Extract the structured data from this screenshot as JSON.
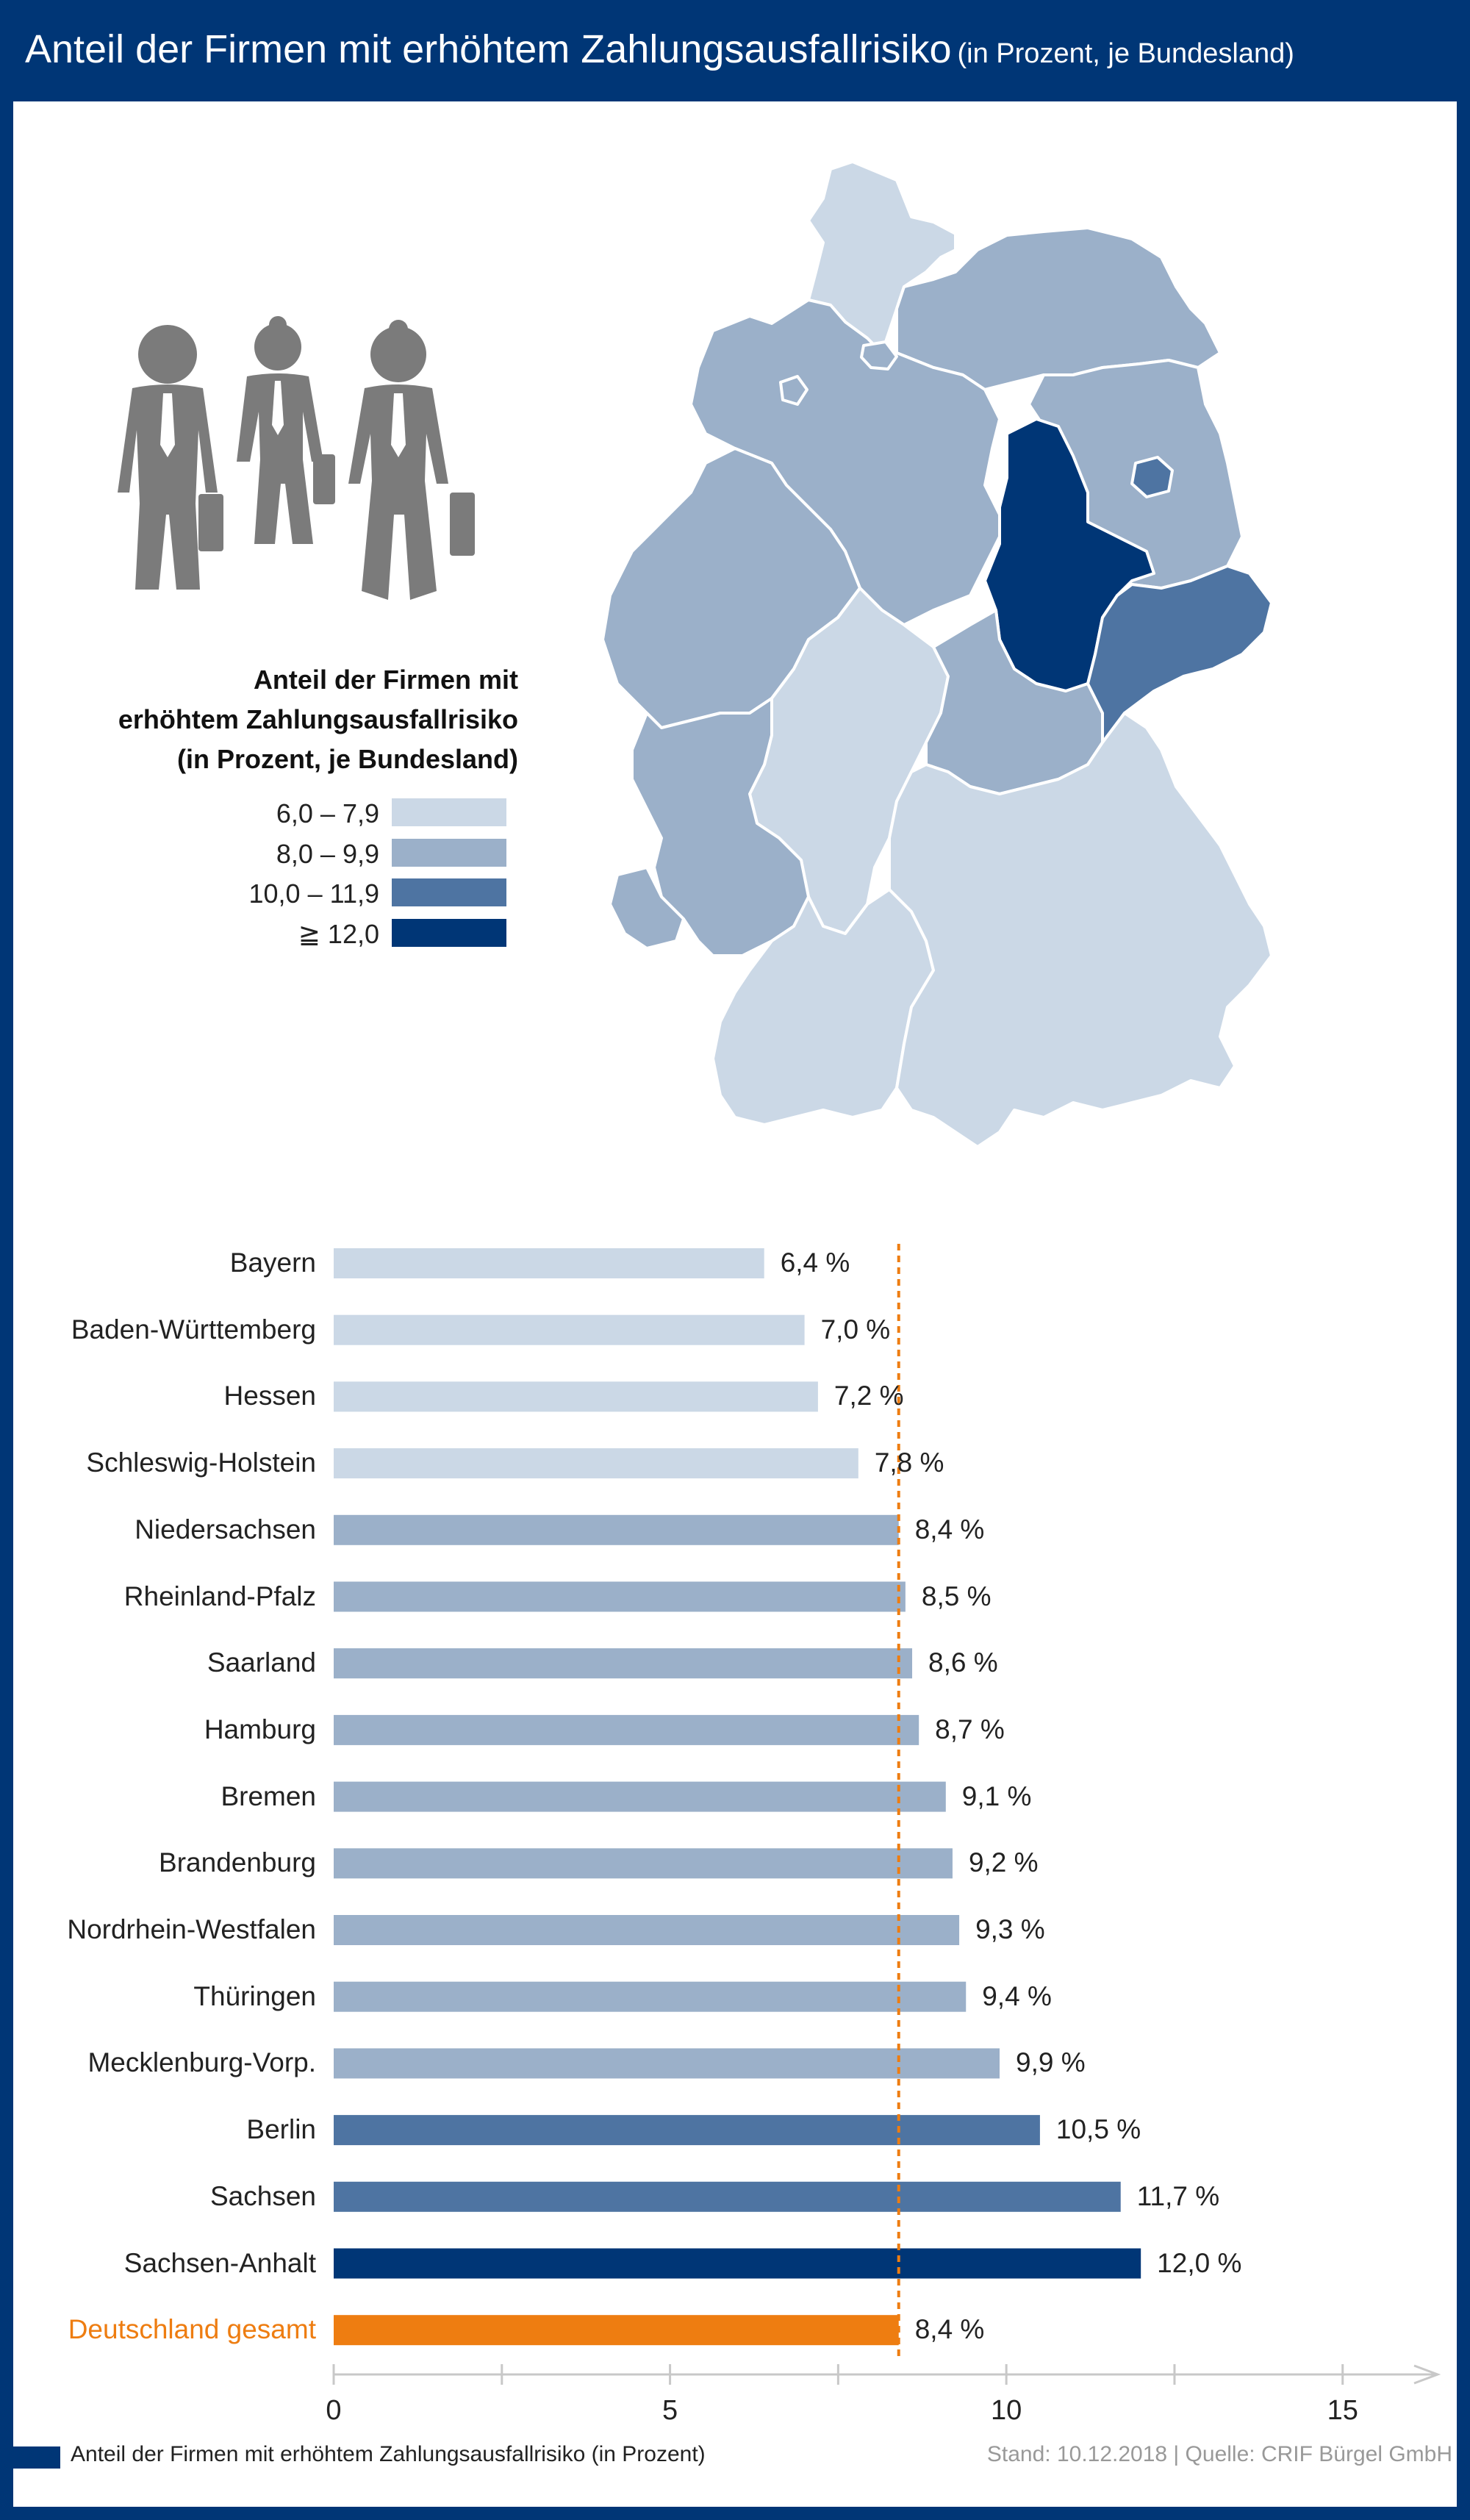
{
  "title": {
    "main": "Anteil der Firmen mit erhöhtem Zahlungsausfallrisiko",
    "sub": "(in Prozent, je Bundesland)"
  },
  "legend": {
    "title_line1": "Anteil der Firmen mit",
    "title_line2": "erhöhtem Zahlungsausfallrisiko",
    "title_line3": "(in Prozent, je Bundesland)",
    "items": [
      {
        "label": "6,0 – 7,9",
        "color": "#cbd8e6"
      },
      {
        "label": "8,0 – 9,9",
        "color": "#9bb0c9"
      },
      {
        "label": "10,0 – 11,9",
        "color": "#4e74a2"
      },
      {
        "label": "≧ 12,0",
        "color": "#003676"
      }
    ]
  },
  "chart_data": {
    "type": "bar",
    "orientation": "horizontal",
    "categories": [
      "Bayern",
      "Baden-Württemberg",
      "Hessen",
      "Schleswig-Holstein",
      "Niedersachsen",
      "Rheinland-Pfalz",
      "Saarland",
      "Hamburg",
      "Bremen",
      "Brandenburg",
      "Nordrhein-Westfalen",
      "Thüringen",
      "Mecklenburg-Vorp.",
      "Berlin",
      "Sachsen",
      "Sachsen-Anhalt",
      "Deutschland gesamt"
    ],
    "values": [
      6.4,
      7.0,
      7.2,
      7.8,
      8.4,
      8.5,
      8.6,
      8.7,
      9.1,
      9.2,
      9.3,
      9.4,
      9.9,
      10.5,
      11.7,
      12.0,
      8.4
    ],
    "value_labels": [
      "6,4 %",
      "7,0 %",
      "7,2 %",
      "7,8 %",
      "8,4 %",
      "8,5 %",
      "8,6 %",
      "8,7 %",
      "9,1 %",
      "9,2 %",
      "9,3 %",
      "9,4 %",
      "9,9 %",
      "10,5 %",
      "11,7 %",
      "12,0 %",
      "8,4 %"
    ],
    "colors": [
      "#cbd8e6",
      "#cbd8e6",
      "#cbd8e6",
      "#cbd8e6",
      "#9bb0c9",
      "#9bb0c9",
      "#9bb0c9",
      "#9bb0c9",
      "#9bb0c9",
      "#9bb0c9",
      "#9bb0c9",
      "#9bb0c9",
      "#9bb0c9",
      "#4e74a2",
      "#4e74a2",
      "#003676",
      "#ee7d11"
    ],
    "highlight_index": 16,
    "highlight_color": "#ee7d11",
    "reference_line": 8.4,
    "reference_color": "#ee7d11",
    "xlim": [
      0,
      16.5
    ],
    "xticks": [
      0,
      5,
      10,
      15
    ],
    "xtick_labels": [
      "0",
      "5",
      "10",
      "15"
    ],
    "minor_ticks": [
      2.5,
      7.5,
      12.5
    ],
    "title": "Anteil der Firmen mit erhöhtem Zahlungsausfallrisiko",
    "xlabel": "",
    "ylabel": ""
  },
  "map": {
    "states": [
      {
        "name": "Schleswig-Holstein",
        "color": "#cbd8e6"
      },
      {
        "name": "Hamburg",
        "color": "#9bb0c9"
      },
      {
        "name": "Mecklenburg-Vorp.",
        "color": "#9bb0c9"
      },
      {
        "name": "Niedersachsen",
        "color": "#9bb0c9"
      },
      {
        "name": "Bremen",
        "color": "#9bb0c9"
      },
      {
        "name": "Brandenburg",
        "color": "#9bb0c9"
      },
      {
        "name": "Berlin",
        "color": "#4e74a2"
      },
      {
        "name": "Sachsen-Anhalt",
        "color": "#003676"
      },
      {
        "name": "Nordrhein-Westfalen",
        "color": "#9bb0c9"
      },
      {
        "name": "Hessen",
        "color": "#cbd8e6"
      },
      {
        "name": "Thüringen",
        "color": "#9bb0c9"
      },
      {
        "name": "Sachsen",
        "color": "#4e74a2"
      },
      {
        "name": "Rheinland-Pfalz",
        "color": "#9bb0c9"
      },
      {
        "name": "Saarland",
        "color": "#9bb0c9"
      },
      {
        "name": "Baden-Württemberg",
        "color": "#cbd8e6"
      },
      {
        "name": "Bayern",
        "color": "#cbd8e6"
      }
    ]
  },
  "footer": {
    "key_label": "Anteil der Firmen mit erhöhtem Zahlungsausfallrisiko (in Prozent)",
    "source": "Stand: 10.12.2018 | Quelle: CRIF Bürgel GmbH",
    "key_color": "#003676"
  }
}
